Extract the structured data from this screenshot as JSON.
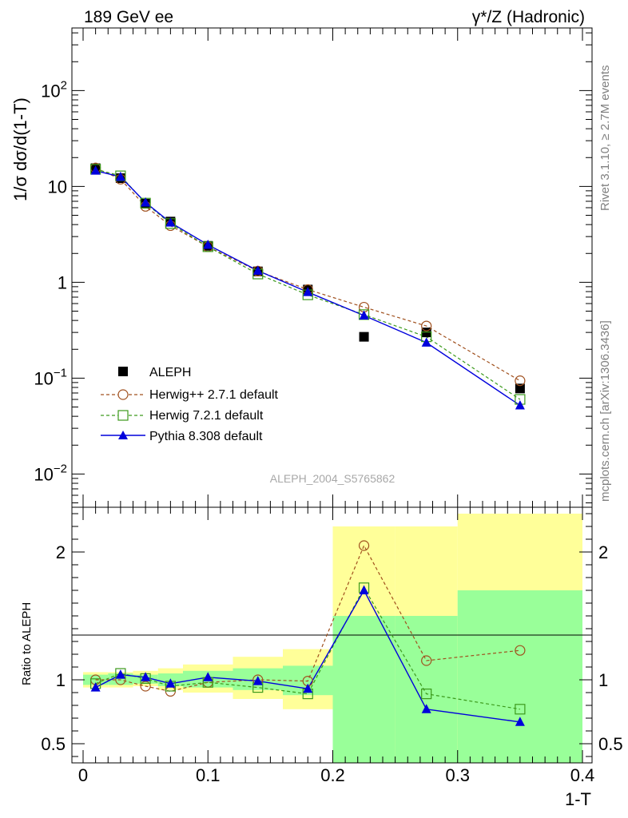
{
  "header": {
    "left_title": "189 GeV ee",
    "right_title": "γ*/Z (Hadronic)"
  },
  "side_labels": {
    "top": "Rivet 3.1.10, ≥ 2.7M events",
    "bottom": "mcplots.cern.ch [arXiv:1306.3436]"
  },
  "watermark": "ALEPH_2004_S5765862",
  "colors": {
    "data": "#000000",
    "herwigpp": "#a0501e",
    "herwig7": "#3c9a1c",
    "pythia": "#0000dc",
    "band_outer": "#ffff99",
    "band_inner": "#99ff99"
  },
  "legend": {
    "data": "ALEPH",
    "herwigpp": "Herwig++ 2.7.1 default",
    "herwig7": "Herwig 7.2.1 default",
    "pythia": "Pythia 8.308 default"
  },
  "chart_data": [
    {
      "type": "line",
      "panel": "main",
      "xlabel": "1-T",
      "ylabel": "1/σ  dσ/d(1-T)",
      "yscale": "log",
      "xlim": [
        0,
        0.4
      ],
      "ylim": [
        0.0045,
        450
      ],
      "y_tick_labels": [
        "10^-2",
        "10^-1",
        "1",
        "10",
        "10^2"
      ],
      "x": [
        0.01,
        0.03,
        0.05,
        0.07,
        0.1,
        0.14,
        0.18,
        0.225,
        0.275,
        0.35
      ],
      "series": [
        {
          "name": "ALEPH",
          "key": "data",
          "style": "marker",
          "values": [
            15.5,
            12.2,
            6.6,
            4.3,
            2.4,
            1.3,
            0.84,
            0.27,
            0.3,
            0.078
          ]
        },
        {
          "name": "Herwig++ 2.7.1 default",
          "key": "herwigpp",
          "style": "dashed-circle",
          "values": [
            15.6,
            11.9,
            6.2,
            3.9,
            2.35,
            1.31,
            0.84,
            0.55,
            0.35,
            0.094
          ]
        },
        {
          "name": "Herwig 7.2.1 default",
          "key": "herwig7",
          "style": "dashed-square",
          "values": [
            15.1,
            12.9,
            6.7,
            4.1,
            2.35,
            1.22,
            0.74,
            0.46,
            0.27,
            0.06
          ]
        },
        {
          "name": "Pythia 8.308 default",
          "key": "pythia",
          "style": "solid-triangle",
          "values": [
            14.6,
            12.6,
            6.8,
            4.2,
            2.46,
            1.32,
            0.79,
            0.45,
            0.235,
            0.052
          ]
        }
      ]
    },
    {
      "type": "line",
      "panel": "ratio",
      "xlabel": "1-T",
      "ylabel": "Ratio to ALEPH",
      "xlim": [
        0,
        0.4
      ],
      "ylim": [
        0.35,
        2.35
      ],
      "x_tick_labels": [
        "0",
        "0.1",
        "0.2",
        "0.3",
        "0.4"
      ],
      "y_tick_labels": [
        "0.5",
        "1",
        "2"
      ],
      "x": [
        0.01,
        0.03,
        0.05,
        0.07,
        0.1,
        0.14,
        0.18,
        0.225,
        0.275,
        0.35
      ],
      "bands": {
        "edges": [
          0,
          0.02,
          0.04,
          0.06,
          0.08,
          0.12,
          0.16,
          0.2,
          0.25,
          0.3,
          0.4
        ],
        "outer_lo": [
          0.94,
          0.94,
          0.95,
          0.92,
          0.9,
          0.85,
          0.77,
          0.2,
          0.2,
          0.2
        ],
        "outer_hi": [
          1.06,
          1.06,
          1.07,
          1.09,
          1.12,
          1.18,
          1.24,
          2.2,
          2.2,
          2.3
        ],
        "inner_lo": [
          0.96,
          0.96,
          0.97,
          0.95,
          0.94,
          0.92,
          0.88,
          0.2,
          0.2,
          0.2
        ],
        "inner_hi": [
          1.04,
          1.05,
          1.04,
          1.05,
          1.07,
          1.09,
          1.11,
          1.5,
          1.5,
          1.7
        ]
      },
      "series": [
        {
          "name": "Herwig++ 2.7.1 default",
          "key": "herwigpp",
          "values": [
            1.0,
            1.0,
            0.95,
            0.91,
            0.98,
            1.0,
            0.99,
            2.05,
            1.15,
            1.23
          ]
        },
        {
          "name": "Herwig 7.2.1 default",
          "key": "herwig7",
          "values": [
            0.97,
            1.05,
            1.01,
            0.95,
            0.98,
            0.94,
            0.89,
            1.72,
            0.89,
            0.77
          ]
        },
        {
          "name": "Pythia 8.308 default",
          "key": "pythia",
          "values": [
            0.94,
            1.04,
            1.02,
            0.97,
            1.02,
            0.99,
            0.93,
            1.7,
            0.77,
            0.67
          ]
        }
      ]
    }
  ]
}
